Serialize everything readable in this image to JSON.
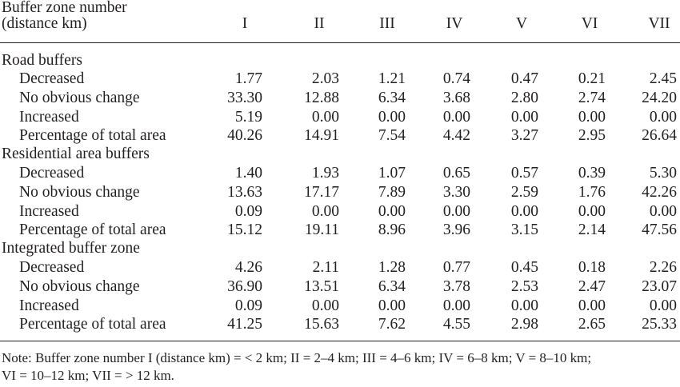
{
  "header": {
    "line1": "Buffer zone number",
    "line2": "(distance km)",
    "columns": [
      "I",
      "II",
      "III",
      "IV",
      "V",
      "VI",
      "VII"
    ]
  },
  "sections": [
    {
      "title": "Road buffers",
      "rows": [
        {
          "label": "Decreased",
          "values": [
            "1.77",
            "2.03",
            "1.21",
            "0.74",
            "0.47",
            "0.21",
            "2.45"
          ]
        },
        {
          "label": "No obvious change",
          "values": [
            "33.30",
            "12.88",
            "6.34",
            "3.68",
            "2.80",
            "2.74",
            "24.20"
          ]
        },
        {
          "label": "Increased",
          "values": [
            "5.19",
            "0.00",
            "0.00",
            "0.00",
            "0.00",
            "0.00",
            "0.00"
          ]
        },
        {
          "label": "Percentage of total area",
          "values": [
            "40.26",
            "14.91",
            "7.54",
            "4.42",
            "3.27",
            "2.95",
            "26.64"
          ]
        }
      ]
    },
    {
      "title": "Residential area buffers",
      "rows": [
        {
          "label": "Decreased",
          "values": [
            "1.40",
            "1.93",
            "1.07",
            "0.65",
            "0.57",
            "0.39",
            "5.30"
          ]
        },
        {
          "label": "No obvious change",
          "values": [
            "13.63",
            "17.17",
            "7.89",
            "3.30",
            "2.59",
            "1.76",
            "42.26"
          ]
        },
        {
          "label": "Increased",
          "values": [
            "0.09",
            "0.00",
            "0.00",
            "0.00",
            "0.00",
            "0.00",
            "0.00"
          ]
        },
        {
          "label": "Percentage of total area",
          "values": [
            "15.12",
            "19.11",
            "8.96",
            "3.96",
            "3.15",
            "2.14",
            "47.56"
          ]
        }
      ]
    },
    {
      "title": "Integrated buffer zone",
      "rows": [
        {
          "label": "Decreased",
          "values": [
            "4.26",
            "2.11",
            "1.28",
            "0.77",
            "0.45",
            "0.18",
            "2.26"
          ]
        },
        {
          "label": "No obvious change",
          "values": [
            "36.90",
            "13.51",
            "6.34",
            "3.78",
            "2.53",
            "2.47",
            "23.07"
          ]
        },
        {
          "label": "Increased",
          "values": [
            "0.09",
            "0.00",
            "0.00",
            "0.00",
            "0.00",
            "0.00",
            "0.00"
          ]
        },
        {
          "label": "Percentage of total area",
          "values": [
            "41.25",
            "15.63",
            "7.62",
            "4.55",
            "2.98",
            "2.65",
            "25.33"
          ]
        }
      ]
    }
  ],
  "note": {
    "line1": "Note: Buffer zone number I (distance km) = < 2 km; II = 2–4 km; III = 4–6 km; IV = 6–8 km; V = 8–10 km;",
    "line2": "VI = 10–12 km; VII = > 12 km."
  }
}
